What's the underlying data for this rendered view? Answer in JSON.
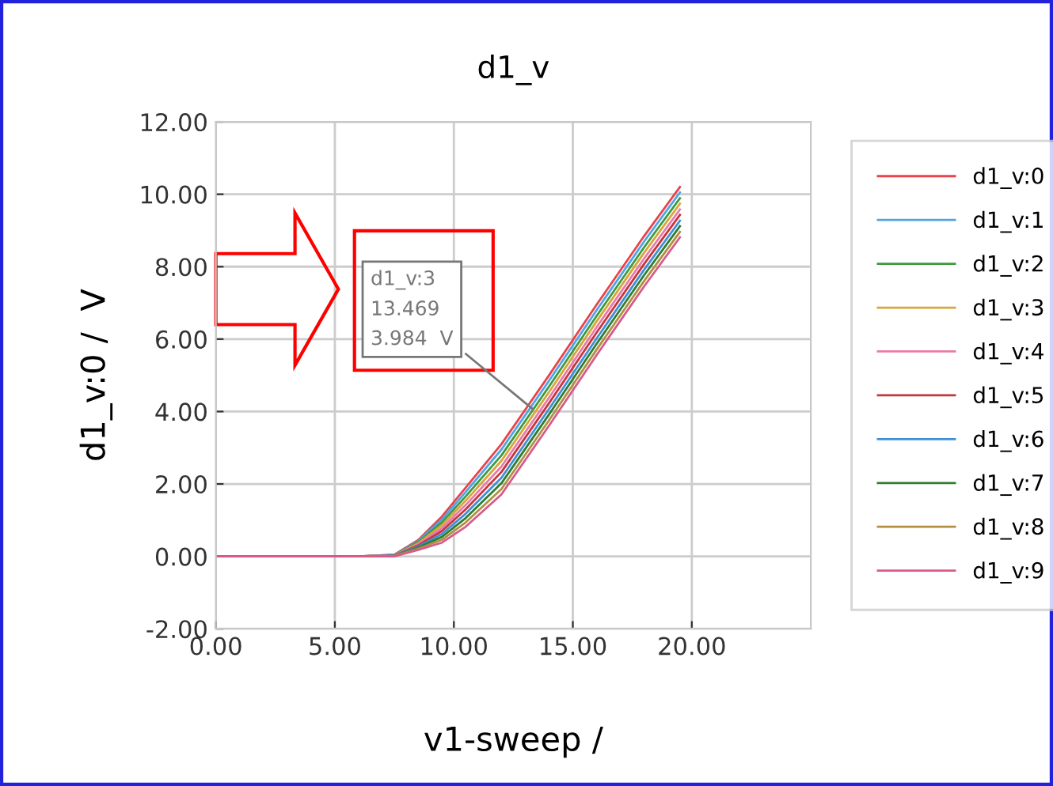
{
  "chart_data": {
    "type": "line",
    "title": "d1_v",
    "xlabel": "v1-sweep /",
    "ylabel": "d1_v:0 /  V",
    "x": [
      0,
      6,
      7.5,
      8.5,
      9.5,
      10.5,
      12,
      14,
      16,
      18,
      19.5
    ],
    "series": [
      {
        "name": "d1_v:0",
        "color": "#e8434a",
        "values": [
          0,
          0,
          0.05,
          0.45,
          1.1,
          1.9,
          3.1,
          5.0,
          6.95,
          8.85,
          10.2
        ]
      },
      {
        "name": "d1_v:1",
        "color": "#4fa3e8",
        "values": [
          0,
          0,
          0.04,
          0.42,
          1.02,
          1.78,
          2.95,
          4.85,
          6.8,
          8.7,
          10.05
        ]
      },
      {
        "name": "d1_v:2",
        "color": "#3e9a3e",
        "values": [
          0,
          0,
          0.04,
          0.39,
          0.94,
          1.66,
          2.79,
          4.69,
          6.64,
          8.54,
          9.89
        ]
      },
      {
        "name": "d1_v:3",
        "color": "#d8a53a",
        "values": [
          0,
          0,
          0.03,
          0.36,
          0.86,
          1.54,
          2.64,
          4.54,
          6.49,
          8.39,
          9.74
        ]
      },
      {
        "name": "d1_v:4",
        "color": "#e87aa8",
        "values": [
          0,
          0,
          0.03,
          0.33,
          0.78,
          1.42,
          2.48,
          4.38,
          6.33,
          8.23,
          9.58
        ]
      },
      {
        "name": "d1_v:5",
        "color": "#c8343c",
        "values": [
          0,
          0,
          0.02,
          0.3,
          0.7,
          1.3,
          2.33,
          4.23,
          6.18,
          8.08,
          9.43
        ]
      },
      {
        "name": "d1_v:6",
        "color": "#3f8fd8",
        "values": [
          0,
          0,
          0.02,
          0.27,
          0.62,
          1.18,
          2.17,
          4.07,
          6.02,
          7.92,
          9.27
        ]
      },
      {
        "name": "d1_v:7",
        "color": "#2e7d32",
        "values": [
          0,
          0,
          0.01,
          0.24,
          0.54,
          1.06,
          2.02,
          3.92,
          5.87,
          7.77,
          9.12
        ]
      },
      {
        "name": "d1_v:8",
        "color": "#b09040",
        "values": [
          0,
          0,
          0.01,
          0.21,
          0.46,
          0.94,
          1.86,
          3.76,
          5.71,
          7.61,
          8.96
        ]
      },
      {
        "name": "d1_v:9",
        "color": "#d85a8a",
        "values": [
          0,
          0,
          0.0,
          0.18,
          0.38,
          0.82,
          1.71,
          3.61,
          5.56,
          7.46,
          8.81
        ]
      }
    ],
    "xlim": [
      0,
      25
    ],
    "xticks": [
      {
        "value": 0,
        "label": "0.00"
      },
      {
        "value": 5,
        "label": "5.00"
      },
      {
        "value": 10,
        "label": "10.00"
      },
      {
        "value": 15,
        "label": "15.00"
      },
      {
        "value": 20,
        "label": "20.00"
      }
    ],
    "ylim": [
      -2,
      12
    ],
    "yticks": [
      {
        "value": -2,
        "label": "-2.00"
      },
      {
        "value": 0,
        "label": "0.00"
      },
      {
        "value": 2,
        "label": "2.00"
      },
      {
        "value": 4,
        "label": "4.00"
      },
      {
        "value": 6,
        "label": "6.00"
      },
      {
        "value": 8,
        "label": "8.00"
      },
      {
        "value": 10,
        "label": "10.00"
      },
      {
        "value": 12,
        "label": "12.00"
      }
    ],
    "annotations": [
      {
        "text": "d1_v:3\n13.469\n3.984  V",
        "x": 13.469,
        "y": 3.984
      }
    ],
    "grid": true,
    "legend": "right",
    "marker": "none",
    "line_style": "solid"
  }
}
